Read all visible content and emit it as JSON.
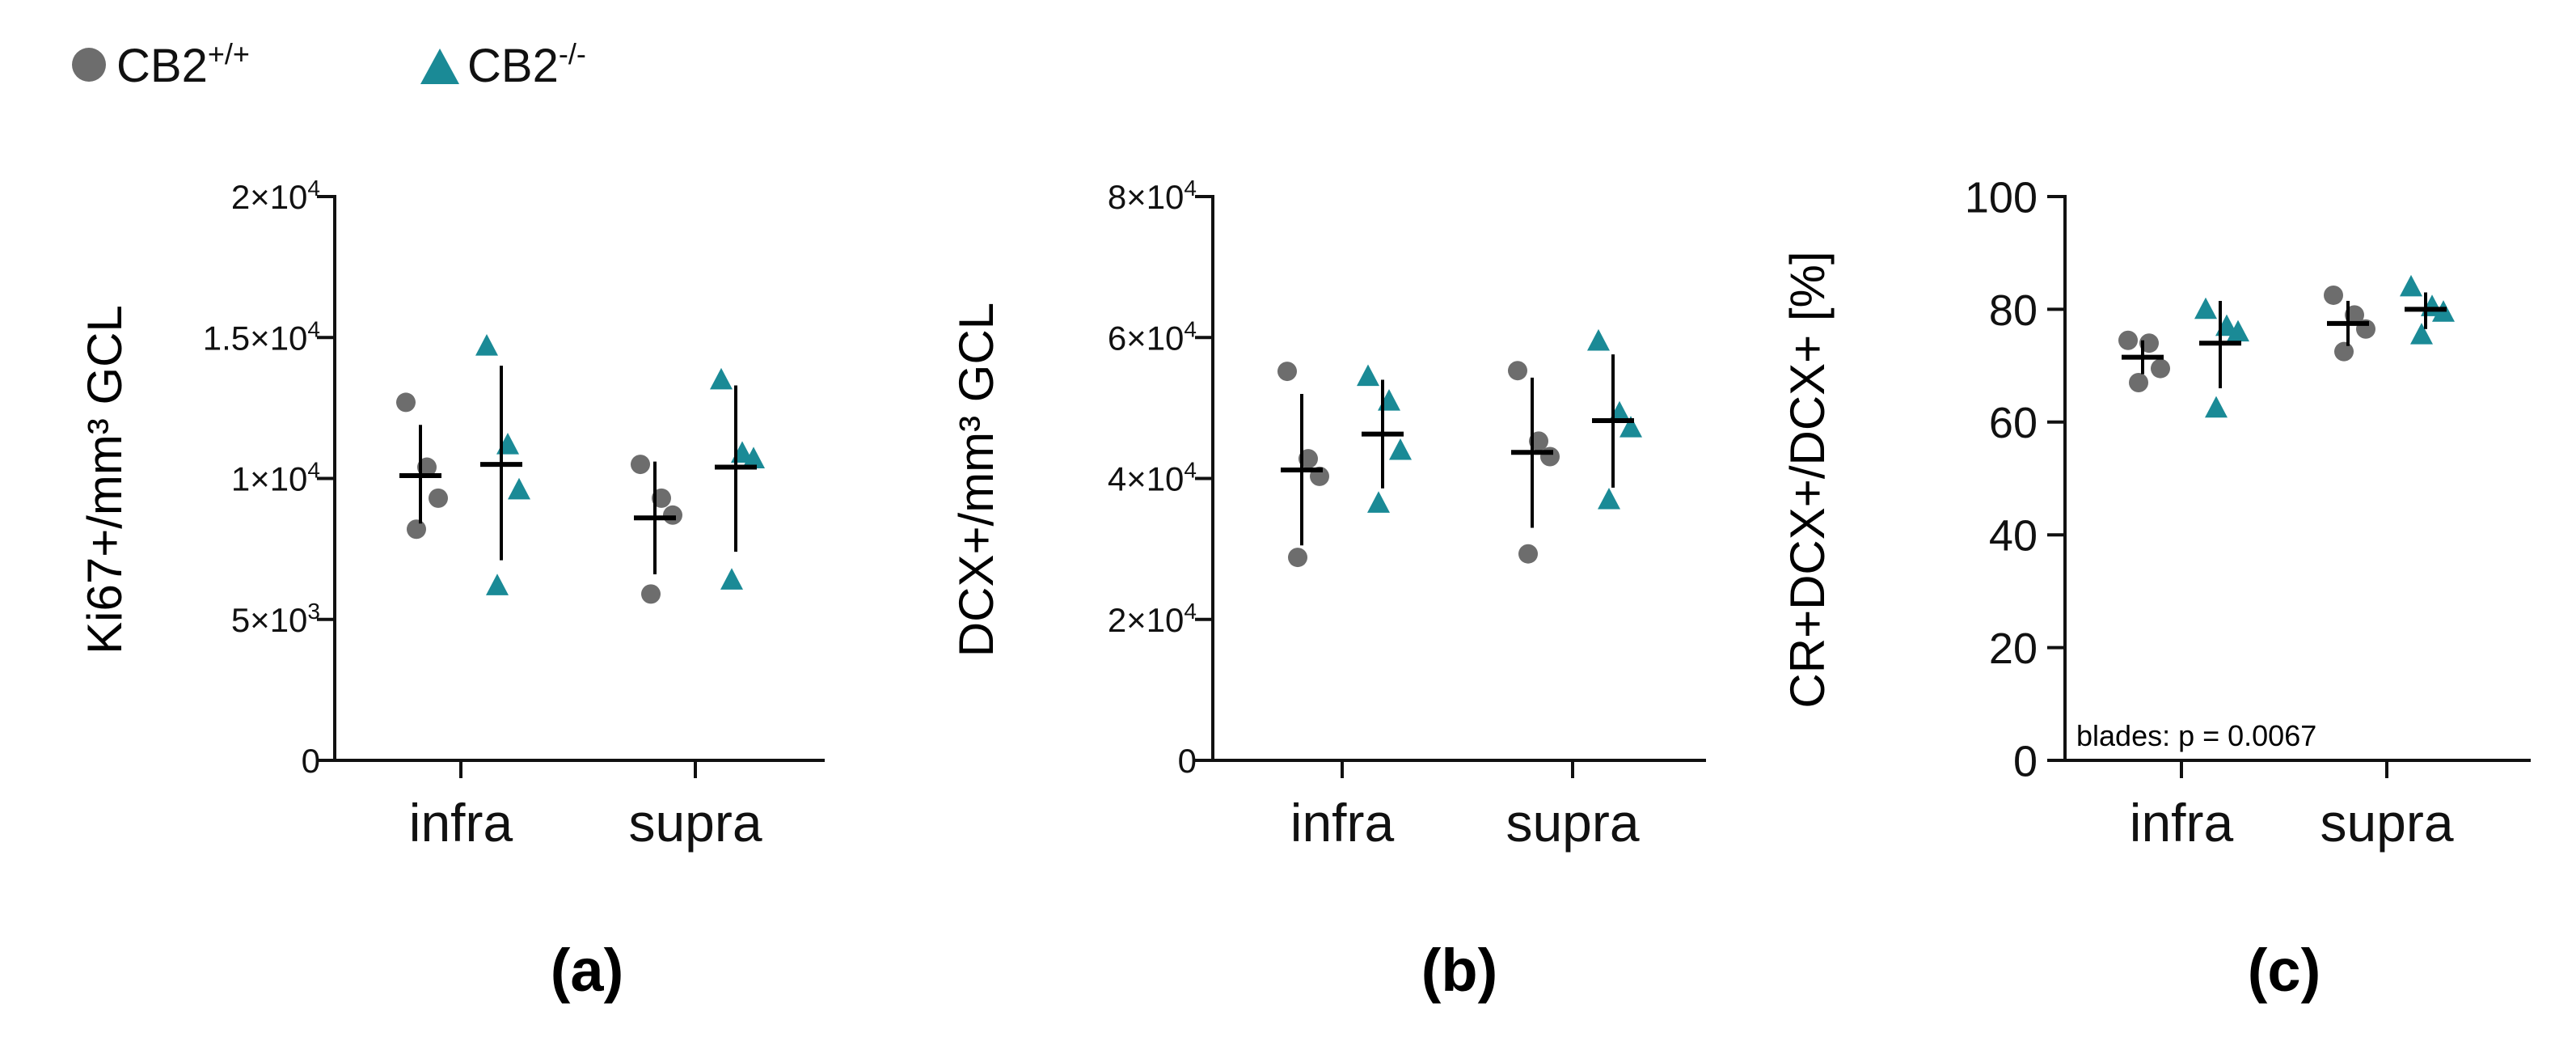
{
  "legend": {
    "items": [
      {
        "name": "CB2",
        "sup": "+/+",
        "shape": "circle",
        "color": "#6d6d6d"
      },
      {
        "name": "CB2",
        "sup": "-/-",
        "shape": "triangle",
        "color": "#1a8a96"
      }
    ]
  },
  "colors": {
    "wt": "#6d6d6d",
    "ko": "#1a8a96",
    "axis": "#111111",
    "mean": "#000000"
  },
  "chart_data": [
    {
      "type": "scatter",
      "panel_label": "(a)",
      "ylabel": "Ki67+/mm³ GCL",
      "ylim": [
        0,
        20000
      ],
      "yticks": [
        0,
        5000,
        10000,
        15000,
        20000
      ],
      "ytick_labels": [
        {
          "base": "0",
          "exp": ""
        },
        {
          "base": "5×10",
          "exp": "3"
        },
        {
          "base": "1×10",
          "exp": "4"
        },
        {
          "base": "1.5×10",
          "exp": "4"
        },
        {
          "base": "2×10",
          "exp": "4"
        }
      ],
      "categories": [
        "infra",
        "supra"
      ],
      "series": [
        {
          "name": "CB2+/+",
          "group": [
            {
              "category": "infra",
              "points": [
                12700,
                10400,
                9300,
                8200
              ],
              "mean": 10100,
              "sd_low": 8400,
              "sd_high": 11900
            },
            {
              "category": "supra",
              "points": [
                10500,
                9300,
                8700,
                5900
              ],
              "mean": 8600,
              "sd_low": 6600,
              "sd_high": 10600
            }
          ]
        },
        {
          "name": "CB2-/-",
          "group": [
            {
              "category": "infra",
              "points": [
                14700,
                11200,
                9600,
                6200
              ],
              "mean": 10500,
              "sd_low": 7100,
              "sd_high": 14000
            },
            {
              "category": "supra",
              "points": [
                13500,
                10900,
                10700,
                6400
              ],
              "mean": 10400,
              "sd_low": 7400,
              "sd_high": 13300
            }
          ]
        }
      ],
      "annotation": ""
    },
    {
      "type": "scatter",
      "panel_label": "(b)",
      "ylabel": "DCX+/mm³ GCL",
      "ylim": [
        0,
        80000
      ],
      "yticks": [
        0,
        20000,
        40000,
        60000,
        80000
      ],
      "ytick_labels": [
        {
          "base": "0",
          "exp": ""
        },
        {
          "base": "2×10",
          "exp": "4"
        },
        {
          "base": "4×10",
          "exp": "4"
        },
        {
          "base": "6×10",
          "exp": "4"
        },
        {
          "base": "8×10",
          "exp": "4"
        }
      ],
      "categories": [
        "infra",
        "supra"
      ],
      "series": [
        {
          "name": "CB2+/+",
          "group": [
            {
              "category": "infra",
              "points": [
                55200,
                42800,
                40300,
                28800
              ],
              "mean": 41200,
              "sd_low": 30500,
              "sd_high": 52000
            },
            {
              "category": "supra",
              "points": [
                55300,
                45300,
                43100,
                29300
              ],
              "mean": 43700,
              "sd_low": 33000,
              "sd_high": 54300
            }
          ]
        },
        {
          "name": "CB2-/-",
          "group": [
            {
              "category": "infra",
              "points": [
                54500,
                51000,
                44000,
                36500
              ],
              "mean": 46300,
              "sd_low": 38600,
              "sd_high": 54000
            },
            {
              "category": "supra",
              "points": [
                59500,
                49300,
                47200,
                37000
              ],
              "mean": 48200,
              "sd_low": 38700,
              "sd_high": 57600
            }
          ]
        }
      ],
      "annotation": ""
    },
    {
      "type": "scatter",
      "panel_label": "(c)",
      "ylabel": "CR+DCX+/DCX+ [%]",
      "ylim": [
        0,
        100
      ],
      "yticks": [
        0,
        20,
        40,
        60,
        80,
        100
      ],
      "ytick_labels": [
        {
          "base": "0",
          "exp": ""
        },
        {
          "base": "20",
          "exp": ""
        },
        {
          "base": "40",
          "exp": ""
        },
        {
          "base": "60",
          "exp": ""
        },
        {
          "base": "80",
          "exp": ""
        },
        {
          "base": "100",
          "exp": ""
        }
      ],
      "categories": [
        "infra",
        "supra"
      ],
      "series": [
        {
          "name": "CB2+/+",
          "group": [
            {
              "category": "infra",
              "points": [
                74.5,
                74.0,
                69.5,
                67.0
              ],
              "mean": 71.5,
              "sd_low": 68.5,
              "sd_high": 74.5
            },
            {
              "category": "supra",
              "points": [
                82.5,
                79.0,
                76.5,
                72.5
              ],
              "mean": 77.5,
              "sd_low": 73.5,
              "sd_high": 81.5
            }
          ]
        },
        {
          "name": "CB2-/-",
          "group": [
            {
              "category": "infra",
              "points": [
                80.0,
                77.0,
                76.0,
                62.5
              ],
              "mean": 74.0,
              "sd_low": 66.0,
              "sd_high": 81.5
            },
            {
              "category": "supra",
              "points": [
                84.0,
                80.5,
                79.5,
                75.5
              ],
              "mean": 80.0,
              "sd_low": 76.5,
              "sd_high": 83.0
            }
          ]
        }
      ],
      "annotation": "blades: p = 0.0067"
    }
  ]
}
